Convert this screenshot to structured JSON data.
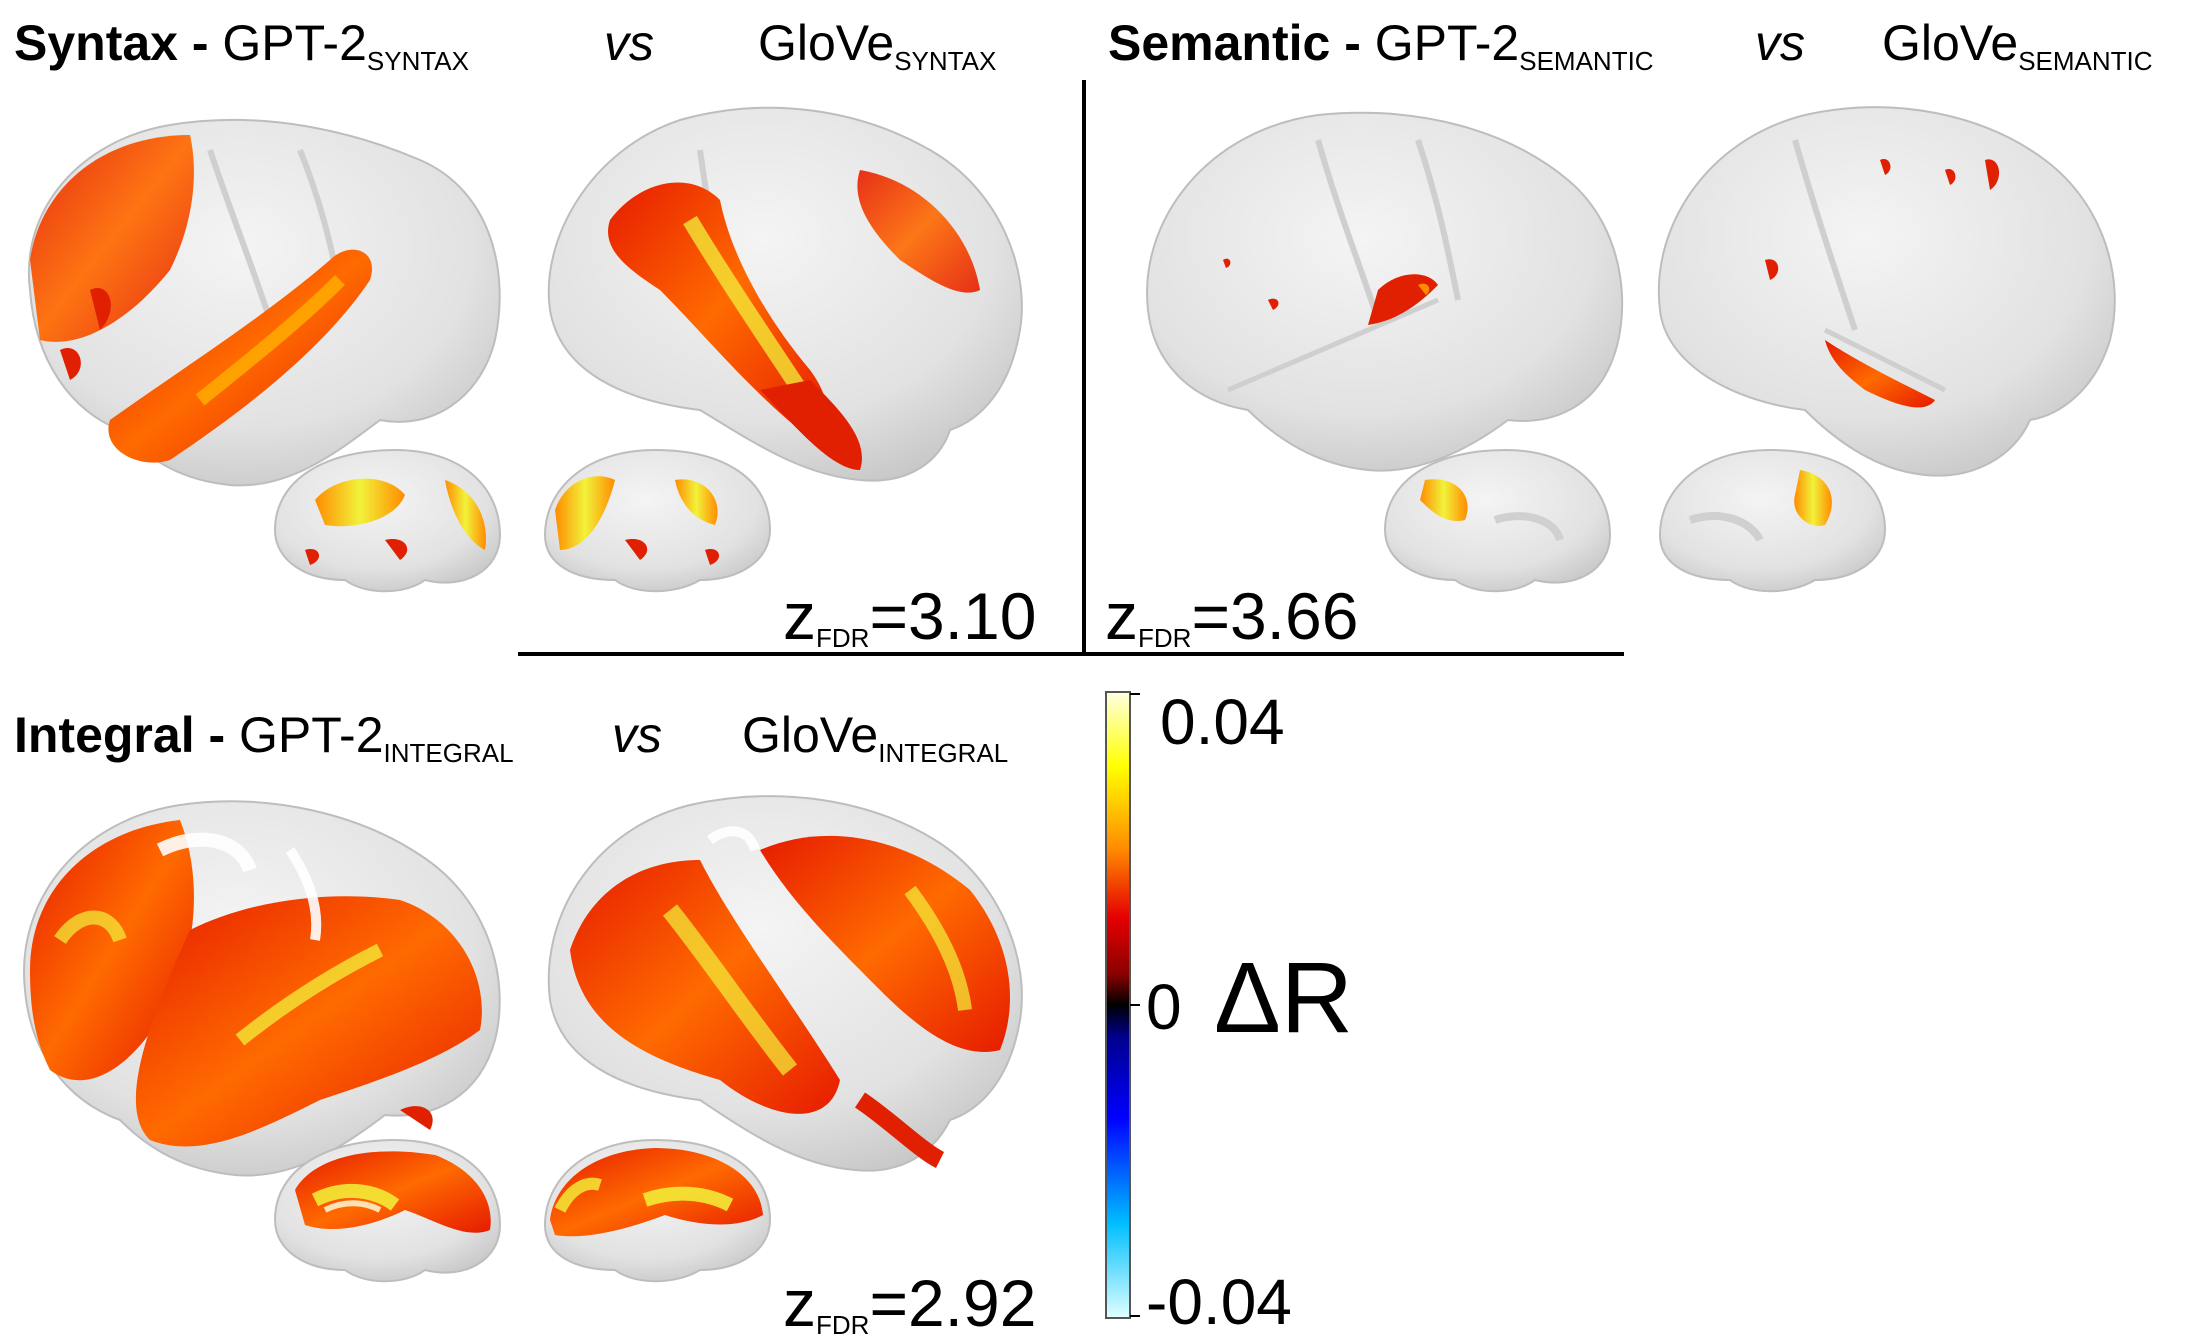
{
  "panels": {
    "syntax": {
      "title_bold": "Syntax - ",
      "model_a": "GPT-2",
      "model_a_sub": "SYNTAX",
      "vs": "vs",
      "model_b": "GloVe",
      "model_b_sub": "SYNTAX",
      "z_main": "z",
      "z_sub": "FDR",
      "z_value": "=3.10"
    },
    "semantic": {
      "title_bold": "Semantic - ",
      "model_a": "GPT-2",
      "model_a_sub": "SEMANTIC",
      "vs": "vs",
      "model_b": "GloVe",
      "model_b_sub": "SEMANTIC",
      "z_main": "z",
      "z_sub": "FDR",
      "z_value": "=3.66"
    },
    "integral": {
      "title_bold": "Integral - ",
      "model_a": "GPT-2",
      "model_a_sub": "INTEGRAL",
      "vs": "vs",
      "model_b": "GloVe",
      "model_b_sub": "INTEGRAL",
      "z_main": "z",
      "z_sub": "FDR",
      "z_value": "=2.92"
    }
  },
  "colorbar": {
    "max_label": "0.04",
    "zero_label": "0",
    "min_label": "-0.04",
    "quantity": "ΔR",
    "colors": [
      "#ffffe0",
      "#ffff00",
      "#ff8c00",
      "#e60000",
      "#8b0000",
      "#000000",
      "#00008b",
      "#0000ff",
      "#00bfff",
      "#e0ffff"
    ]
  },
  "colors": {
    "cortex": "#e6e6e6",
    "activation_low": "#e02000",
    "activation_mid": "#ff6a00",
    "activation_high": "#f2f23a"
  }
}
